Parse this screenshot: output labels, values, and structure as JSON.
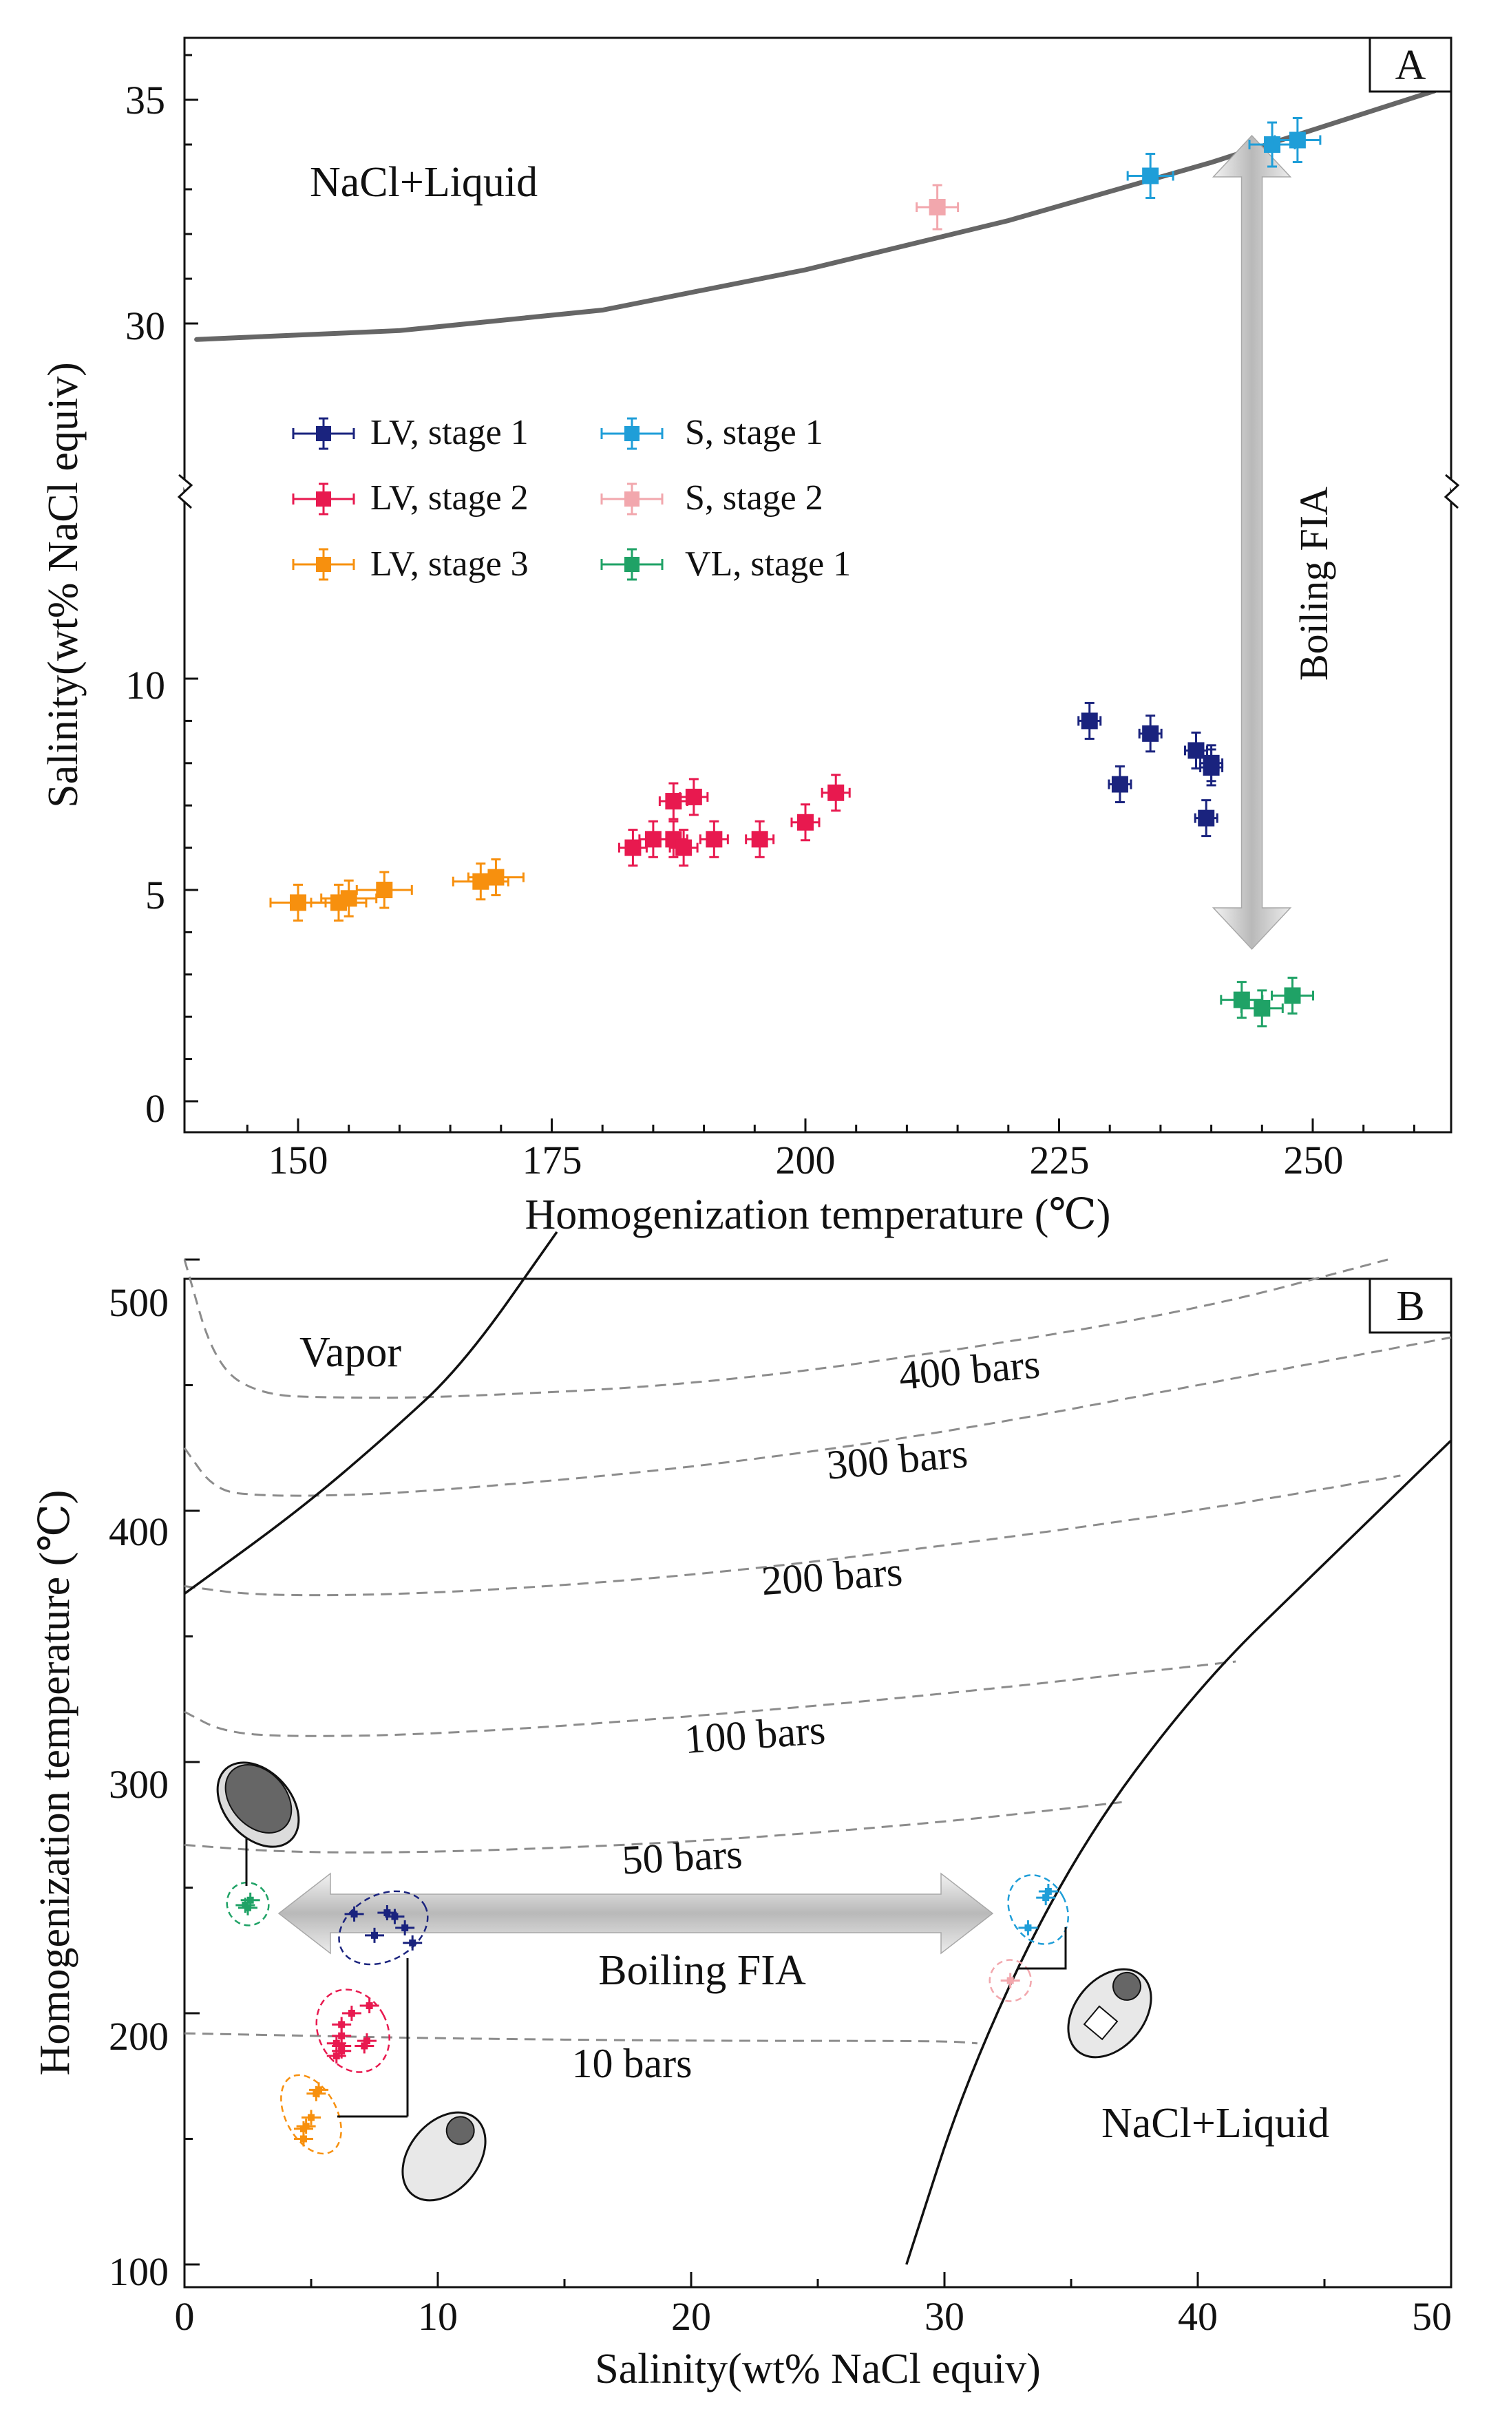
{
  "chart_data": [
    {
      "panel": "A",
      "type": "scatter",
      "panel_label": "A",
      "xlabel": "Homogenization temperature (℃)",
      "ylabel": "Salinity(wt% NaCl equiv)",
      "xlim": [
        140,
        264
      ],
      "ylim": [
        0,
        36.5
      ],
      "y_axis_break": "between 10 and 30 wt% (axis break marks)",
      "xticks": [
        150,
        175,
        200,
        225,
        250
      ],
      "xtick_labels": [
        "150",
        "175",
        "200",
        "225",
        "250"
      ],
      "yticks": [
        0,
        5,
        10,
        30,
        35
      ],
      "ytick_labels": [
        "0",
        "5",
        "10",
        "30",
        "35"
      ],
      "region_label": "NaCl+Liquid",
      "curve": {
        "name": "halite saturation",
        "points": [
          [
            140,
            29.1
          ],
          [
            160,
            29.6
          ],
          [
            180,
            30.3
          ],
          [
            200,
            31.2
          ],
          [
            220,
            32.3
          ],
          [
            240,
            33.6
          ],
          [
            262,
            35.2
          ]
        ]
      },
      "arrow_label": "Boiling FIA",
      "arrow": {
        "x": 244,
        "y_from": 34.2,
        "y_to": 3.6
      },
      "legend": [
        "LV, stage 1",
        "S, stage 1",
        "LV, stage 2",
        "S, stage 2",
        "LV, stage 3",
        "VL, stage 1"
      ],
      "series": [
        {
          "name": "LV, stage 1",
          "color": "#1a237e",
          "points": [
            [
              228,
              9.0
            ],
            [
              234,
              8.7
            ],
            [
              238.5,
              8.3
            ],
            [
              240,
              8.0
            ],
            [
              240,
              7.9
            ],
            [
              231,
              7.5
            ],
            [
              239.5,
              6.7
            ]
          ]
        },
        {
          "name": "LV, stage 2",
          "color": "#e8194f",
          "points": [
            [
              187,
              7.1
            ],
            [
              189,
              7.2
            ],
            [
              203,
              7.3
            ],
            [
              183,
              6.0
            ],
            [
              185,
              6.2
            ],
            [
              187,
              6.2
            ],
            [
              188,
              6.0
            ],
            [
              191,
              6.2
            ],
            [
              195.5,
              6.2
            ],
            [
              200,
              6.6
            ]
          ]
        },
        {
          "name": "LV, stage 3",
          "color": "#f7900e",
          "points": [
            [
              150,
              4.7
            ],
            [
              154,
              4.7
            ],
            [
              155,
              4.8
            ],
            [
              158.5,
              5.0
            ],
            [
              168,
              5.2
            ],
            [
              169.5,
              5.3
            ]
          ]
        },
        {
          "name": "S, stage 1",
          "color": "#1f9ed8",
          "points": [
            [
              234,
              33.3
            ],
            [
              246,
              34.0
            ],
            [
              248.5,
              34.1
            ]
          ]
        },
        {
          "name": "S, stage 2",
          "color": "#f2a7ad",
          "points": [
            [
              213,
              32.6
            ]
          ]
        },
        {
          "name": "VL, stage 1",
          "color": "#1fa266",
          "points": [
            [
              243,
              2.4
            ],
            [
              245,
              2.2
            ],
            [
              248,
              2.5
            ]
          ]
        }
      ]
    },
    {
      "panel": "B",
      "type": "line",
      "panel_label": "B",
      "xlabel": "Salinity(wt% NaCl equiv)",
      "ylabel": "Homogenization temperature (℃)",
      "xlim": [
        0,
        50
      ],
      "ylim": [
        100,
        510
      ],
      "xticks": [
        0,
        10,
        20,
        30,
        40,
        50
      ],
      "xtick_labels": [
        "0",
        "10",
        "20",
        "30",
        "40",
        "50"
      ],
      "yticks": [
        100,
        200,
        300,
        400,
        500
      ],
      "ytick_labels": [
        "100",
        "200",
        "300",
        "400",
        "500"
      ],
      "labels": {
        "vapor": "Vapor",
        "nacl_liquid": "NaCl+Liquid",
        "boiling": "Boiling FIA"
      },
      "isobars": [
        {
          "label": "400 bars",
          "points": [
            [
              0,
              500
            ],
            [
              1.2,
              458
            ],
            [
              3,
              446
            ],
            [
              6,
              445
            ],
            [
              10,
              445
            ],
            [
              20,
              450
            ],
            [
              30,
              463
            ],
            [
              40,
              480
            ],
            [
              47.5,
              500
            ]
          ]
        },
        {
          "label": "300 bars",
          "points": [
            [
              0,
              425
            ],
            [
              1.2,
              408
            ],
            [
              3,
              406
            ],
            [
              6,
              406
            ],
            [
              10,
              408
            ],
            [
              20,
              417
            ],
            [
              30,
              431
            ],
            [
              40,
              450
            ],
            [
              50,
              469
            ]
          ]
        },
        {
          "label": "200 bars",
          "points": [
            [
              0,
              370
            ],
            [
              3,
              366
            ],
            [
              10,
              367
            ],
            [
              20,
              374
            ],
            [
              30,
              386
            ],
            [
              40,
              400
            ],
            [
              48,
              414
            ]
          ]
        },
        {
          "label": "100 bars",
          "points": [
            [
              0,
              320
            ],
            [
              1.5,
              312
            ],
            [
              4,
              310
            ],
            [
              10,
              311
            ],
            [
              20,
              318
            ],
            [
              30,
              327
            ],
            [
              41.5,
              340
            ]
          ]
        },
        {
          "label": "50 bars",
          "points": [
            [
              0,
              267
            ],
            [
              4,
              264
            ],
            [
              10,
              264
            ],
            [
              20,
              268
            ],
            [
              30,
              276
            ],
            [
              37,
              284
            ]
          ]
        },
        {
          "label": "10 bars",
          "points": [
            [
              0,
              192
            ],
            [
              5,
              191
            ],
            [
              10,
              190
            ],
            [
              20,
              189
            ],
            [
              30,
              189
            ],
            [
              31.3,
              188
            ]
          ]
        }
      ],
      "boundaries": [
        {
          "name": "vapor-liquid",
          "points": [
            [
              0,
              367
            ],
            [
              4.5,
              400
            ],
            [
              8,
              430
            ],
            [
              11,
              458
            ],
            [
              14.7,
              511
            ]
          ]
        },
        {
          "name": "halite saturation",
          "points": [
            [
              28.5,
              100
            ],
            [
              31,
              178
            ],
            [
              35,
              262
            ],
            [
              40,
              330
            ],
            [
              45,
              379
            ],
            [
              50,
              428
            ]
          ]
        }
      ],
      "groups": [
        {
          "name": "VL, stage 1",
          "color": "#1fa266",
          "points": [
            [
              2.4,
              243
            ],
            [
              2.6,
              245
            ],
            [
              2.5,
              242
            ]
          ]
        },
        {
          "name": "LV, stage 1",
          "color": "#1a237e",
          "points": [
            [
              6.7,
              239.5
            ],
            [
              7.5,
              231
            ],
            [
              8.0,
              240
            ],
            [
              8.3,
              238.5
            ],
            [
              8.7,
              234
            ],
            [
              9.0,
              228
            ]
          ]
        },
        {
          "name": "LV, stage 2",
          "color": "#e8194f",
          "points": [
            [
              6.0,
              183
            ],
            [
              6.2,
              185
            ],
            [
              6.2,
              187
            ],
            [
              6.0,
              188
            ],
            [
              6.2,
              191
            ],
            [
              6.2,
              195.5
            ],
            [
              7.1,
              187
            ],
            [
              7.2,
              189
            ],
            [
              6.6,
              200
            ],
            [
              7.3,
              203
            ]
          ]
        },
        {
          "name": "LV, stage 3",
          "color": "#f7900e",
          "points": [
            [
              4.7,
              150
            ],
            [
              4.7,
              154
            ],
            [
              4.8,
              155
            ],
            [
              5.0,
              158.5
            ],
            [
              5.2,
              168
            ],
            [
              5.3,
              169.5
            ]
          ]
        },
        {
          "name": "S, stage 1",
          "color": "#1f9ed8",
          "points": [
            [
              33.3,
              234
            ],
            [
              34.0,
              246
            ],
            [
              34.1,
              248.5
            ]
          ]
        },
        {
          "name": "S, stage 2",
          "color": "#f2a7ad",
          "points": [
            [
              32.6,
              213
            ]
          ]
        }
      ]
    }
  ]
}
